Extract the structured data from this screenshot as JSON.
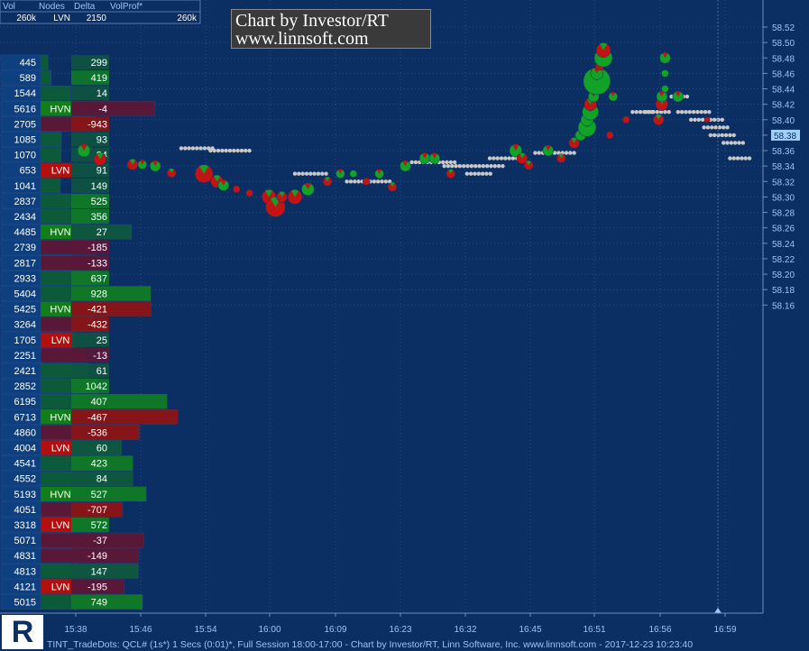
{
  "header": {
    "columns": [
      "Vol",
      "Nodes",
      "Delta",
      "VolProf*"
    ],
    "values": [
      "260k",
      "LVN",
      "2150",
      "260k"
    ]
  },
  "watermark": {
    "line1": "Chart by Investor/RT",
    "line2": "www.linnsoft.com"
  },
  "status_bar": "TINT_TradeDots: QCL# (1s*) 1 Secs (0:01)*, Full Session 18:00-17:00 - Chart by Investor/RT, Linn Software, Inc. www.linnsoft.com - 2017-12-23 10:23:40",
  "logo": {
    "letter": "R"
  },
  "colors": {
    "background": "#0b2e63",
    "buy": "#11a327",
    "sell": "#c21414",
    "neutral": "#c8c8c8",
    "hvn": "#117f17",
    "lvn": "#b30f0f",
    "last_price": "#9fd0ff"
  },
  "last_price_label": "58.38",
  "chart_data": {
    "type": "scatter",
    "y_axis": {
      "ticks": [
        "58.52",
        "58.50",
        "58.48",
        "58.46",
        "58.44",
        "58.42",
        "58.40",
        "58.38",
        "58.36",
        "58.34",
        "58.32",
        "58.30",
        "58.28",
        "58.26",
        "58.24",
        "58.22",
        "58.20",
        "58.18",
        "58.16"
      ],
      "ylim": [
        58.15,
        58.53
      ]
    },
    "x_axis": {
      "ticks": [
        "15:38",
        "15:46",
        "15:54",
        "16:00",
        "16:09",
        "16:23",
        "16:32",
        "16:45",
        "16:51",
        "16:56",
        "16:59"
      ]
    },
    "last_price": 58.38,
    "volume_profile": [
      {
        "price": 58.49,
        "vol": 445,
        "node": "",
        "delta": 299
      },
      {
        "price": 58.48,
        "vol": 589,
        "node": "",
        "delta": 419
      },
      {
        "price": 58.47,
        "vol": 1544,
        "node": "",
        "delta": 14
      },
      {
        "price": 58.46,
        "vol": 5616,
        "node": "HVN",
        "delta": -4
      },
      {
        "price": 58.45,
        "vol": 2705,
        "node": "",
        "delta": -943
      },
      {
        "price": 58.44,
        "vol": 1085,
        "node": "",
        "delta": 93
      },
      {
        "price": 58.43,
        "vol": 1070,
        "node": "",
        "delta": 24
      },
      {
        "price": 58.42,
        "vol": 653,
        "node": "LVN",
        "delta": 91
      },
      {
        "price": 58.41,
        "vol": 1041,
        "node": "",
        "delta": 149
      },
      {
        "price": 58.4,
        "vol": 2837,
        "node": "",
        "delta": 525
      },
      {
        "price": 58.39,
        "vol": 2434,
        "node": "",
        "delta": 356
      },
      {
        "price": 58.38,
        "vol": 4485,
        "node": "HVN",
        "delta": 27
      },
      {
        "price": 58.37,
        "vol": 2739,
        "node": "",
        "delta": -185
      },
      {
        "price": 58.36,
        "vol": 2817,
        "node": "",
        "delta": -133
      },
      {
        "price": 58.35,
        "vol": 2933,
        "node": "",
        "delta": 637
      },
      {
        "price": 58.34,
        "vol": 5404,
        "node": "",
        "delta": 928
      },
      {
        "price": 58.33,
        "vol": 5425,
        "node": "HVN",
        "delta": -421
      },
      {
        "price": 58.32,
        "vol": 3264,
        "node": "",
        "delta": -432
      },
      {
        "price": 58.31,
        "vol": 1705,
        "node": "LVN",
        "delta": 25
      },
      {
        "price": 58.3,
        "vol": 2251,
        "node": "",
        "delta": -13
      },
      {
        "price": 58.29,
        "vol": 2421,
        "node": "",
        "delta": 61
      },
      {
        "price": 58.28,
        "vol": 2852,
        "node": "",
        "delta": 1042
      },
      {
        "price": 58.27,
        "vol": 6195,
        "node": "",
        "delta": 407
      },
      {
        "price": 58.26,
        "vol": 6713,
        "node": "HVN",
        "delta": -467
      },
      {
        "price": 58.25,
        "vol": 4860,
        "node": "",
        "delta": -536
      },
      {
        "price": 58.24,
        "vol": 4004,
        "node": "LVN",
        "delta": 60
      },
      {
        "price": 58.23,
        "vol": 4541,
        "node": "",
        "delta": 423
      },
      {
        "price": 58.22,
        "vol": 4552,
        "node": "",
        "delta": 84
      },
      {
        "price": 58.21,
        "vol": 5193,
        "node": "HVN",
        "delta": 527
      },
      {
        "price": 58.2,
        "vol": 4051,
        "node": "",
        "delta": -707
      },
      {
        "price": 58.19,
        "vol": 3318,
        "node": "LVN",
        "delta": 572
      },
      {
        "price": 58.18,
        "vol": 5071,
        "node": "",
        "delta": -37
      },
      {
        "price": 58.17,
        "vol": 4831,
        "node": "",
        "delta": -149
      },
      {
        "price": 58.16,
        "vol": 4813,
        "node": "",
        "delta": 147
      },
      {
        "price": 58.15,
        "vol": 4121,
        "node": "LVN",
        "delta": -195
      },
      {
        "price": 58.14,
        "vol": 5015,
        "node": "",
        "delta": 749
      }
    ],
    "trade_dots": [
      {
        "t": 0.05,
        "p": 58.36,
        "s": 7,
        "c": "buy"
      },
      {
        "t": 0.1,
        "p": 58.349,
        "s": 7,
        "c": "sell"
      },
      {
        "t": 0.2,
        "p": 58.342,
        "s": 6,
        "c": "sell"
      },
      {
        "t": 0.23,
        "p": 58.342,
        "s": 5,
        "c": "buy"
      },
      {
        "t": 0.27,
        "p": 58.34,
        "s": 6,
        "c": "buy"
      },
      {
        "t": 0.32,
        "p": 58.331,
        "s": 5,
        "c": "sell"
      },
      {
        "t": 0.42,
        "p": 58.33,
        "s": 10,
        "c": "sell"
      },
      {
        "t": 0.46,
        "p": 58.32,
        "s": 7,
        "c": "sell"
      },
      {
        "t": 0.48,
        "p": 58.315,
        "s": 6,
        "c": "buy"
      },
      {
        "t": 0.52,
        "p": 58.31,
        "s": 4,
        "c": "sell"
      },
      {
        "t": 0.56,
        "p": 58.305,
        "s": 4,
        "c": "sell"
      },
      {
        "t": 0.62,
        "p": 58.3,
        "s": 8,
        "c": "sell"
      },
      {
        "t": 0.64,
        "p": 58.287,
        "s": 11,
        "c": "sell"
      },
      {
        "t": 0.66,
        "p": 58.3,
        "s": 6,
        "c": "sell"
      },
      {
        "t": 0.7,
        "p": 58.3,
        "s": 8,
        "c": "sell"
      },
      {
        "t": 0.74,
        "p": 58.31,
        "s": 7,
        "c": "buy"
      },
      {
        "t": 0.8,
        "p": 58.32,
        "s": 5,
        "c": "sell"
      },
      {
        "t": 0.84,
        "p": 58.33,
        "s": 5,
        "c": "buy"
      },
      {
        "t": 0.88,
        "p": 58.33,
        "s": 4,
        "c": "buy"
      },
      {
        "t": 0.92,
        "p": 58.32,
        "s": 4,
        "c": "sell"
      },
      {
        "t": 0.96,
        "p": 58.33,
        "s": 5,
        "c": "buy"
      },
      {
        "t": 1.0,
        "p": 58.313,
        "s": 5,
        "c": "sell"
      },
      {
        "t": 1.04,
        "p": 58.34,
        "s": 6,
        "c": "buy"
      },
      {
        "t": 1.1,
        "p": 58.35,
        "s": 6,
        "c": "buy"
      },
      {
        "t": 1.13,
        "p": 58.35,
        "s": 6,
        "c": "buy"
      },
      {
        "t": 1.18,
        "p": 58.33,
        "s": 5,
        "c": "sell"
      },
      {
        "t": 1.38,
        "p": 58.36,
        "s": 7,
        "c": "buy"
      },
      {
        "t": 1.4,
        "p": 58.35,
        "s": 6,
        "c": "sell"
      },
      {
        "t": 1.42,
        "p": 58.341,
        "s": 5,
        "c": "sell"
      },
      {
        "t": 1.48,
        "p": 58.36,
        "s": 6,
        "c": "buy"
      },
      {
        "t": 1.52,
        "p": 58.35,
        "s": 5,
        "c": "sell"
      },
      {
        "t": 1.56,
        "p": 58.37,
        "s": 6,
        "c": "sell"
      },
      {
        "t": 1.58,
        "p": 58.38,
        "s": 6,
        "c": "buy"
      },
      {
        "t": 1.6,
        "p": 58.39,
        "s": 10,
        "c": "buy"
      },
      {
        "t": 1.6,
        "p": 58.4,
        "s": 7,
        "c": "buy"
      },
      {
        "t": 1.61,
        "p": 58.41,
        "s": 9,
        "c": "buy"
      },
      {
        "t": 1.61,
        "p": 58.42,
        "s": 7,
        "c": "sell"
      },
      {
        "t": 1.62,
        "p": 58.43,
        "s": 6,
        "c": "buy"
      },
      {
        "t": 1.63,
        "p": 58.45,
        "s": 15,
        "c": "buy"
      },
      {
        "t": 1.63,
        "p": 58.46,
        "s": 7,
        "c": "buy"
      },
      {
        "t": 1.64,
        "p": 58.47,
        "s": 5,
        "c": "sell"
      },
      {
        "t": 1.65,
        "p": 58.48,
        "s": 10,
        "c": "buy"
      },
      {
        "t": 1.65,
        "p": 58.49,
        "s": 8,
        "c": "sell"
      },
      {
        "t": 1.67,
        "p": 58.38,
        "s": 4,
        "c": "sell"
      },
      {
        "t": 1.68,
        "p": 58.43,
        "s": 5,
        "c": "buy"
      },
      {
        "t": 1.72,
        "p": 58.4,
        "s": 4,
        "c": "sell"
      },
      {
        "t": 1.82,
        "p": 58.4,
        "s": 6,
        "c": "sell"
      },
      {
        "t": 1.83,
        "p": 58.42,
        "s": 7,
        "c": "sell"
      },
      {
        "t": 1.83,
        "p": 58.43,
        "s": 6,
        "c": "buy"
      },
      {
        "t": 1.84,
        "p": 58.44,
        "s": 4,
        "c": "buy"
      },
      {
        "t": 1.84,
        "p": 58.46,
        "s": 4,
        "c": "buy"
      },
      {
        "t": 1.84,
        "p": 58.48,
        "s": 6,
        "c": "buy"
      },
      {
        "t": 1.88,
        "p": 58.43,
        "s": 6,
        "c": "buy"
      },
      {
        "t": 1.97,
        "p": 58.4,
        "s": 3,
        "c": "sell"
      }
    ]
  }
}
